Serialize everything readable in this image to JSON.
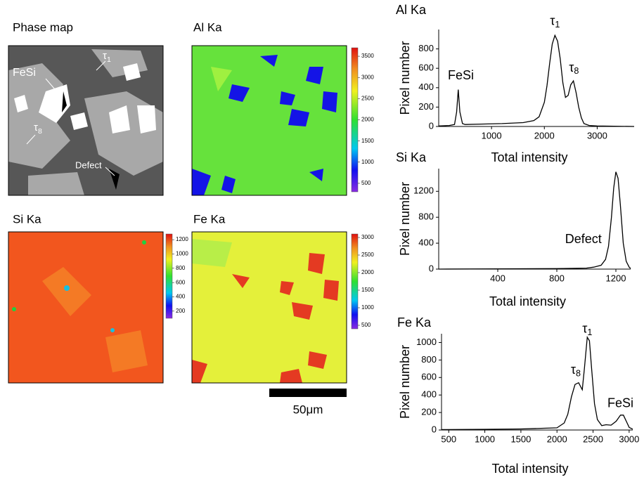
{
  "maps": {
    "phase": {
      "title": "Phase map",
      "annotations": [
        {
          "text": "FeSi"
        },
        {
          "text": "τ",
          "sub": "1"
        },
        {
          "text": "τ",
          "sub": "8"
        },
        {
          "text": "Defect"
        }
      ]
    },
    "colormaps": [
      {
        "title": "Al Ka",
        "clim": [
          300,
          3700
        ],
        "ticks": [
          500,
          1000,
          1500,
          2000,
          2500,
          3000,
          3500
        ]
      },
      {
        "title": "Si Ka",
        "clim": [
          100,
          1280
        ],
        "ticks": [
          200,
          400,
          600,
          800,
          1000,
          1200
        ]
      },
      {
        "title": "Fe Ka",
        "clim": [
          400,
          3100
        ],
        "ticks": [
          500,
          1000,
          1500,
          2000,
          2500,
          3000
        ]
      }
    ],
    "scale_bar": "50μm"
  },
  "chart_data": [
    {
      "type": "line",
      "title": "Al Ka",
      "xlabel": "Total intensity",
      "ylabel": "Pixel number",
      "x": [
        0,
        200,
        300,
        340,
        370,
        400,
        450,
        500,
        800,
        1200,
        1600,
        1800,
        1900,
        2000,
        2050,
        2100,
        2150,
        2200,
        2250,
        2300,
        2350,
        2400,
        2450,
        2500,
        2550,
        2600,
        2650,
        2700,
        2750,
        2850,
        3000,
        3700
      ],
      "values": [
        5,
        10,
        20,
        150,
        380,
        150,
        30,
        20,
        25,
        30,
        40,
        60,
        100,
        250,
        420,
        650,
        850,
        940,
        880,
        700,
        450,
        300,
        320,
        430,
        470,
        350,
        200,
        90,
        30,
        10,
        5,
        0
      ],
      "color": "#000000",
      "xlim": [
        0,
        3700
      ],
      "ylim": [
        0,
        1000
      ],
      "xticks": [
        1000,
        2000,
        3000
      ],
      "yticks": [
        0,
        200,
        400,
        600,
        800
      ],
      "annotations": [
        {
          "text": "FeSi",
          "x": 420,
          "y": 520
        },
        {
          "text": "τ",
          "sub": "1",
          "x": 2200,
          "y": 1080
        },
        {
          "text": "τ",
          "sub": "8",
          "x": 2560,
          "y": 600
        }
      ]
    },
    {
      "type": "line",
      "title": "Si Ka",
      "xlabel": "Total intensity",
      "ylabel": "Pixel number",
      "x": [
        0,
        400,
        800,
        1000,
        1050,
        1100,
        1130,
        1150,
        1170,
        1185,
        1200,
        1215,
        1230,
        1250,
        1270,
        1290,
        1300
      ],
      "values": [
        0,
        3,
        8,
        15,
        30,
        60,
        150,
        350,
        800,
        1250,
        1500,
        1400,
        1000,
        400,
        120,
        30,
        10
      ],
      "color": "#000000",
      "xlim": [
        0,
        1300
      ],
      "ylim": [
        0,
        1550
      ],
      "xticks": [
        400,
        800,
        1200
      ],
      "yticks": [
        0,
        400,
        800,
        1200
      ],
      "annotations": [
        {
          "text": "Defect",
          "x": 980,
          "y": 450
        }
      ]
    },
    {
      "type": "line",
      "title": "Fe Ka",
      "xlabel": "Total intensity",
      "ylabel": "Pixel number",
      "x": [
        400,
        1000,
        1500,
        2000,
        2100,
        2150,
        2200,
        2250,
        2300,
        2350,
        2380,
        2420,
        2450,
        2480,
        2520,
        2560,
        2620,
        2680,
        2750,
        2820,
        2880,
        2920,
        2960,
        3000,
        3050
      ],
      "values": [
        5,
        8,
        12,
        25,
        80,
        180,
        380,
        520,
        540,
        460,
        700,
        1060,
        1020,
        700,
        300,
        120,
        50,
        60,
        55,
        100,
        170,
        170,
        100,
        30,
        10
      ],
      "color": "#000000",
      "xlim": [
        400,
        3050
      ],
      "ylim": [
        0,
        1100
      ],
      "xticks": [
        500,
        1000,
        1500,
        2000,
        2500,
        3000
      ],
      "yticks": [
        0,
        200,
        400,
        600,
        800,
        1000
      ],
      "annotations": [
        {
          "text": "τ",
          "sub": "8",
          "x": 2260,
          "y": 680
        },
        {
          "text": "τ",
          "sub": "1",
          "x": 2420,
          "y": 1150
        },
        {
          "text": "FeSi",
          "x": 2880,
          "y": 300
        }
      ]
    }
  ]
}
